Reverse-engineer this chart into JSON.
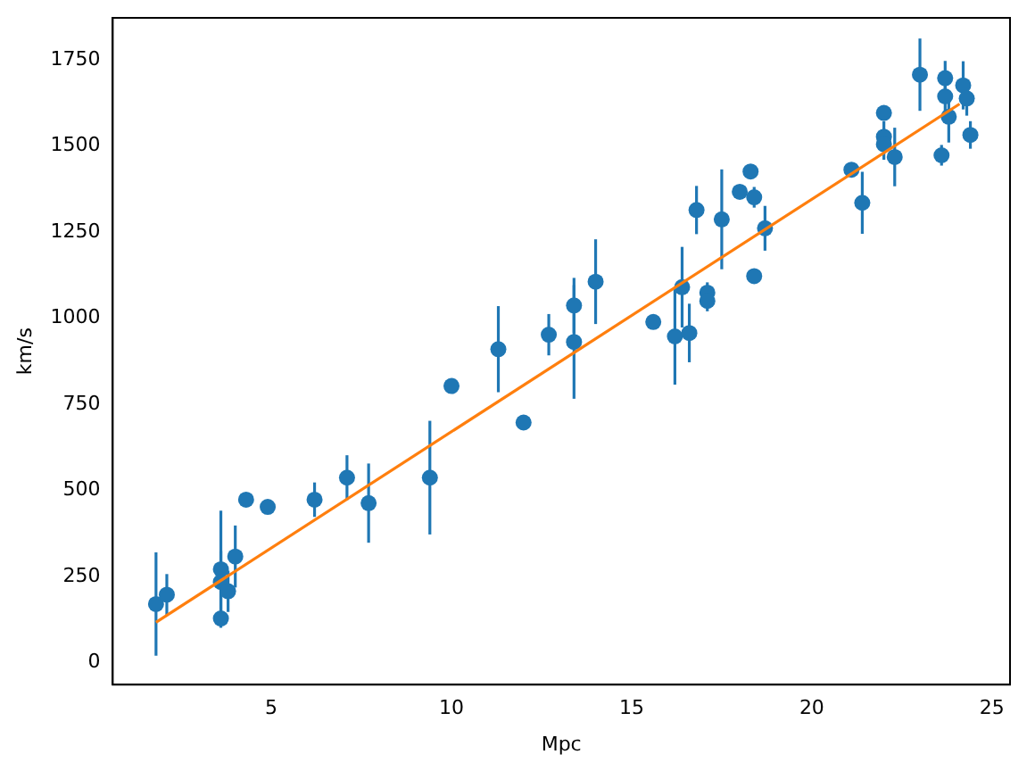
{
  "chart_data": {
    "type": "scatter",
    "xlabel": "Mpc",
    "ylabel": "km/s",
    "xlim": [
      0.6,
      25.5
    ],
    "ylim": [
      -64,
      1872
    ],
    "xticks": [
      5,
      10,
      15,
      20,
      25
    ],
    "yticks": [
      0,
      250,
      500,
      750,
      1000,
      1250,
      1500,
      1750
    ],
    "grid": false,
    "legend": false,
    "marker": "circle",
    "series": [
      {
        "color": "#1f77b4",
        "x": [
          1.8,
          2.1,
          3.6,
          3.6,
          3.8,
          3.6,
          4.0,
          4.3,
          4.9,
          6.2,
          7.1,
          7.7,
          9.4,
          10.0,
          11.3,
          12.0,
          12.7,
          13.4,
          13.4,
          14.0,
          15.6,
          16.2,
          16.4,
          16.6,
          16.8,
          17.5,
          17.1,
          17.1,
          18.0,
          18.3,
          18.4,
          18.4,
          18.7,
          21.1,
          21.4,
          22.0,
          22.0,
          22.0,
          22.3,
          23.0,
          23.6,
          23.7,
          23.7,
          23.8,
          24.2,
          24.3,
          24.4
        ],
        "values": [
          170,
          197,
          271,
          234,
          207,
          128,
          308,
          473,
          452,
          473,
          537,
          463,
          537,
          803,
          910,
          697,
          952,
          1037,
          931,
          1106,
          989,
          947,
          1090,
          957,
          1314,
          1287,
          1074,
          1050,
          1367,
          1426,
          1351,
          1122,
          1261,
          1431,
          1335,
          1527,
          1596,
          1505,
          1468,
          1707,
          1473,
          1697,
          1644,
          1585,
          1676,
          1638,
          1532
        ],
        "errors": [
          150,
          60,
          170,
          90,
          60,
          null,
          90,
          null,
          null,
          50,
          65,
          115,
          165,
          null,
          125,
          20,
          60,
          80,
          165,
          123,
          20,
          140,
          117,
          85,
          70,
          145,
          30,
          30,
          null,
          20,
          30,
          20,
          65,
          null,
          90,
          45,
          null,
          45,
          85,
          105,
          30,
          50,
          50,
          75,
          70,
          50,
          40
        ]
      },
      {
        "type": "line",
        "color": "#ff7f0e",
        "marker": "none",
        "x": [
          1.8,
          24.1
        ],
        "values": [
          117,
          1622
        ]
      }
    ]
  }
}
